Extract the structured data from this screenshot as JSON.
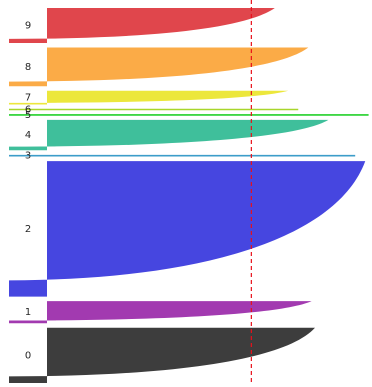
{
  "chart_data": {
    "type": "area",
    "title": "",
    "xlabel": "",
    "ylabel": "",
    "xlim": [
      0,
      1
    ],
    "threshold_line": {
      "x": 0.61,
      "color": "#e8101a",
      "style": "dashed"
    },
    "clusters": [
      {
        "label": "0",
        "color": "#3d3d3d",
        "size": 60,
        "max_value": 0.8
      },
      {
        "label": "1",
        "color": "#a23ab0",
        "size": 24,
        "max_value": 0.79
      },
      {
        "label": "2",
        "color": "#4646e0",
        "size": 147,
        "max_value": 0.95
      },
      {
        "label": "3",
        "color": "#3c9dc9",
        "size": 2,
        "max_value": 0.92
      },
      {
        "label": "4",
        "color": "#3fbf9b",
        "size": 33,
        "max_value": 0.84
      },
      {
        "label": "5",
        "color": "#22d02a",
        "size": 1,
        "max_value": 0.96
      },
      {
        "label": "6",
        "color": "#a8d62b",
        "size": 1,
        "max_value": 0.75
      },
      {
        "label": "7",
        "color": "#ece73c",
        "size": 15,
        "max_value": 0.72
      },
      {
        "label": "8",
        "color": "#fbab47",
        "size": 42,
        "max_value": 0.78
      },
      {
        "label": "9",
        "color": "#e0464c",
        "size": 38,
        "max_value": 0.68
      }
    ]
  }
}
